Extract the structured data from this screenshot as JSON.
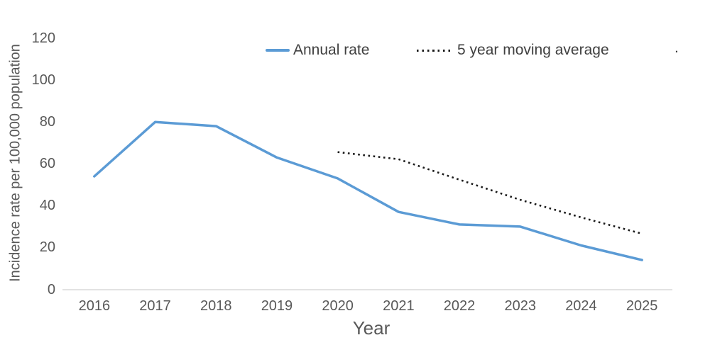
{
  "chart_data": {
    "type": "line",
    "title": "",
    "xlabel": "Year",
    "ylabel": "Incidence rate per 100,000 population",
    "categories": [
      "2016",
      "2017",
      "2018",
      "2019",
      "2020",
      "2021",
      "2022",
      "2023",
      "2024",
      "2025"
    ],
    "yticks": [
      0,
      20,
      40,
      60,
      80,
      100,
      120
    ],
    "ylim": [
      0,
      120
    ],
    "grid": false,
    "legend_position": "top",
    "series": [
      {
        "name": "Annual rate",
        "style": "solid",
        "color": "#5B9BD5",
        "values": [
          54,
          80,
          78,
          63,
          53,
          37,
          31,
          30,
          21,
          14
        ]
      },
      {
        "name": "5 year moving average",
        "style": "dotted",
        "color": "#1a1a1a",
        "values": [
          null,
          null,
          null,
          null,
          65.6,
          62.2,
          52.4,
          42.8,
          34.4,
          26.6
        ]
      }
    ],
    "axis_line_color": "#D9D9D9",
    "tick_text_color": "#595959",
    "legend_text_color": "#404040",
    "legend_trailing_dot": "."
  }
}
